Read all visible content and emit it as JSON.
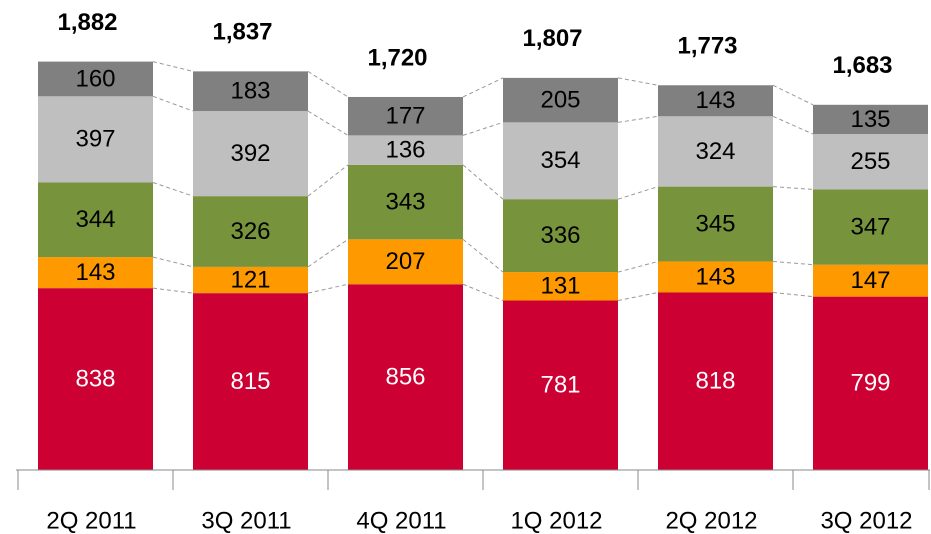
{
  "chart_data": {
    "type": "stacked_bar",
    "categories": [
      "2Q 2011",
      "3Q 2011",
      "4Q 2011",
      "1Q 2012",
      "2Q 2012",
      "3Q 2012"
    ],
    "series": [
      {
        "color": "#cc0033",
        "values": [
          838,
          815,
          856,
          781,
          818,
          799
        ]
      },
      {
        "color": "#ff9900",
        "values": [
          143,
          121,
          207,
          131,
          143,
          147
        ]
      },
      {
        "color": "#77933c",
        "values": [
          344,
          326,
          343,
          336,
          345,
          347
        ]
      },
      {
        "color": "#bfbfbf",
        "values": [
          397,
          392,
          136,
          354,
          324,
          255
        ]
      },
      {
        "color": "#808080",
        "values": [
          160,
          183,
          177,
          205,
          143,
          135
        ]
      }
    ],
    "totals": {
      "values": [
        1882,
        1837,
        1720,
        1807,
        1773,
        1683
      ],
      "value_labels": [
        "1,882",
        "1,837",
        "1,720",
        "1,807",
        "1,773",
        "1,683"
      ]
    },
    "ylim": [
      0,
      2000
    ]
  }
}
